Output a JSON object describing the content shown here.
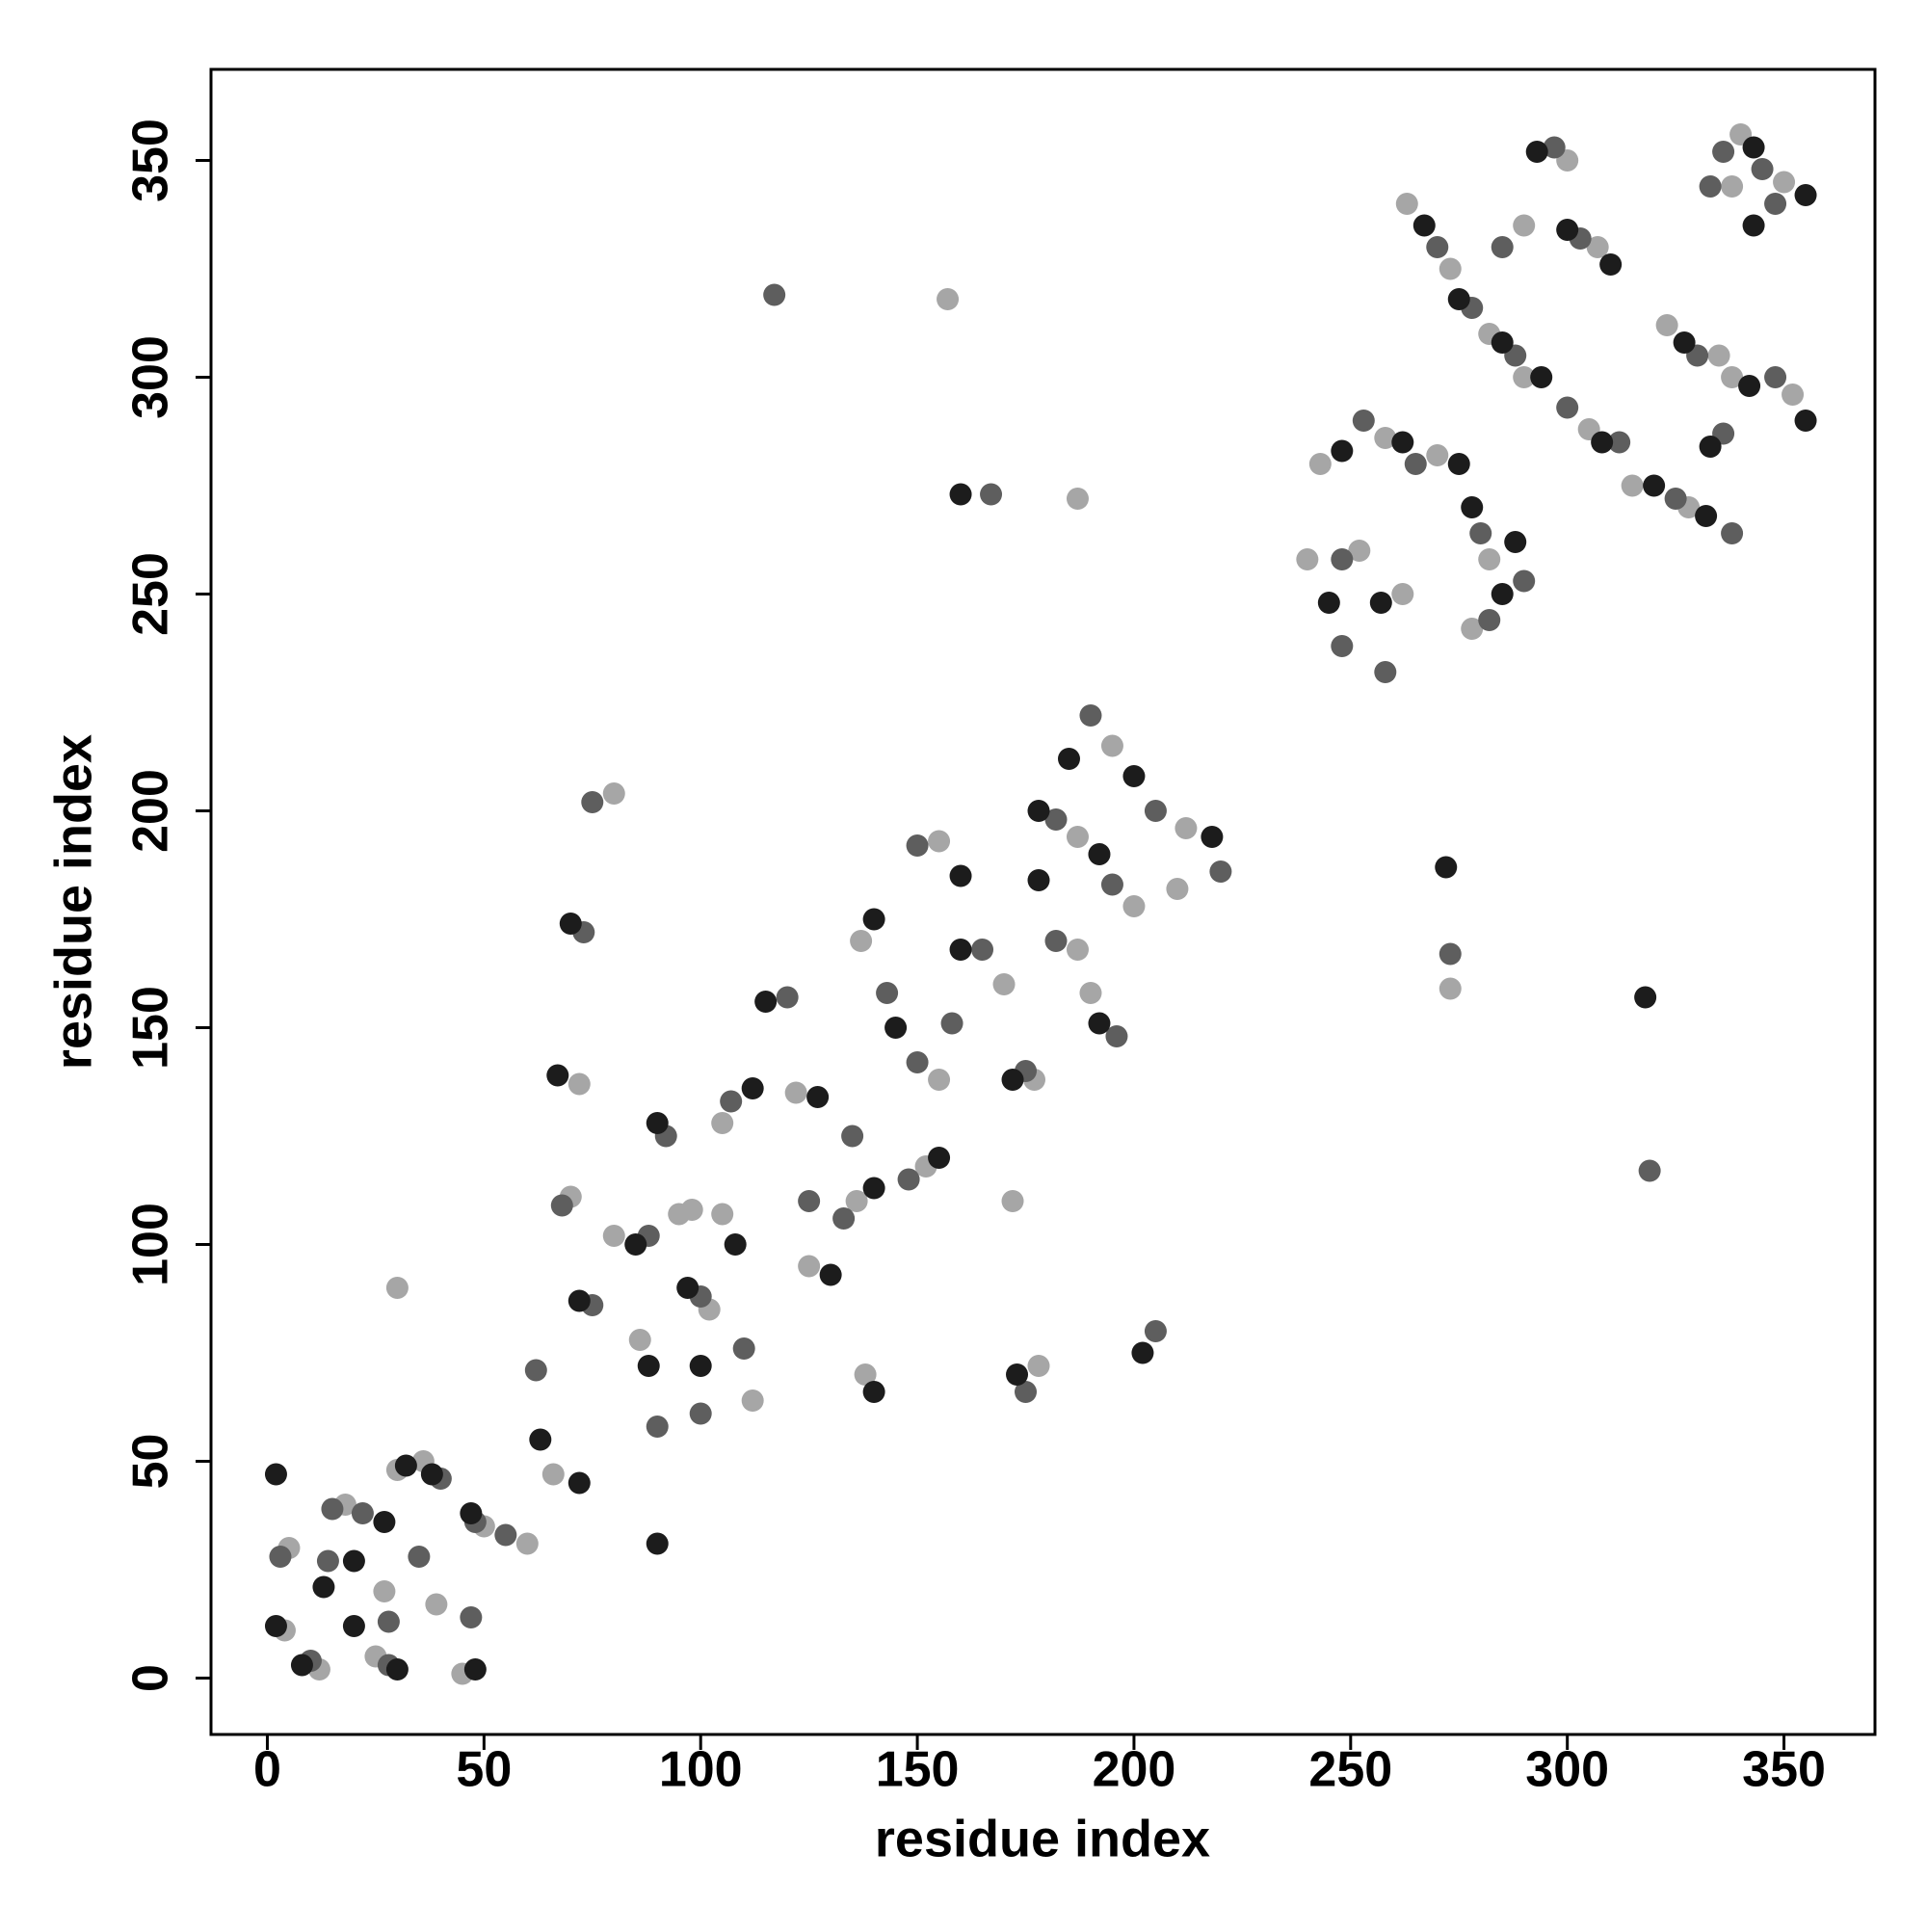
{
  "chart_data": {
    "type": "scatter",
    "xlabel": "residue index",
    "ylabel": "residue index",
    "xlim": [
      -13,
      371
    ],
    "ylim": [
      -13,
      371
    ],
    "xticks": [
      0,
      50,
      100,
      150,
      200,
      250,
      300,
      350
    ],
    "yticks": [
      0,
      50,
      100,
      150,
      200,
      250,
      300,
      350
    ],
    "grid": false,
    "series": [
      {
        "color": "#a6a6a6",
        "x": [
          5,
          12,
          18,
          25,
          30,
          36,
          45,
          50,
          39,
          27,
          4,
          60,
          66,
          70,
          80,
          86,
          95,
          102,
          105,
          112,
          105,
          122,
          125,
          136,
          138,
          152,
          155,
          137,
          155,
          170,
          177,
          187,
          187,
          200,
          190,
          195,
          212,
          210,
          72,
          80,
          98,
          172,
          178,
          30,
          157,
          187,
          273,
          240,
          243,
          258,
          270,
          252,
          262,
          282,
          278,
          263,
          273,
          282,
          290,
          290,
          300,
          307,
          305,
          315,
          328,
          323,
          335,
          338,
          352,
          340,
          338,
          350
        ],
        "y": [
          30,
          2,
          40,
          5,
          48,
          50,
          1,
          35,
          17,
          20,
          11,
          31,
          47,
          111,
          102,
          78,
          107,
          85,
          107,
          64,
          128,
          135,
          95,
          110,
          70,
          118,
          138,
          170,
          193,
          160,
          138,
          168,
          194,
          178,
          158,
          215,
          196,
          182,
          137,
          204,
          108,
          110,
          72,
          90,
          318,
          272,
          159,
          258,
          280,
          286,
          282,
          260,
          250,
          258,
          242,
          340,
          325,
          310,
          300,
          335,
          350,
          330,
          288,
          275,
          270,
          312,
          305,
          300,
          296,
          356,
          344,
          345
        ]
      },
      {
        "color": "#5e5e5e",
        "x": [
          3,
          10,
          15,
          22,
          28,
          35,
          40,
          48,
          47,
          28,
          14,
          55,
          62,
          68,
          75,
          88,
          90,
          100,
          100,
          110,
          107,
          120,
          125,
          133,
          135,
          148,
          150,
          143,
          150,
          165,
          175,
          182,
          182,
          195,
          196,
          190,
          205,
          220,
          73,
          75,
          92,
          158,
          175,
          205,
          117,
          167,
          273,
          319,
          248,
          253,
          265,
          248,
          258,
          280,
          282,
          290,
          270,
          278,
          288,
          285,
          297,
          303,
          300,
          312,
          325,
          338,
          330,
          336,
          348,
          336,
          345,
          348,
          333
        ],
        "y": [
          28,
          4,
          39,
          38,
          3,
          28,
          46,
          36,
          14,
          13,
          27,
          33,
          71,
          109,
          86,
          102,
          58,
          88,
          61,
          76,
          133,
          157,
          110,
          106,
          125,
          115,
          142,
          158,
          192,
          168,
          140,
          170,
          198,
          183,
          148,
          222,
          200,
          186,
          172,
          202,
          125,
          151,
          66,
          80,
          319,
          273,
          167,
          117,
          238,
          290,
          280,
          258,
          232,
          264,
          244,
          253,
          330,
          316,
          305,
          330,
          353,
          332,
          293,
          285,
          272,
          264,
          305,
          287,
          300,
          352,
          348,
          340,
          344
        ]
      },
      {
        "color": "#1c1c1c",
        "x": [
          2,
          8,
          13,
          20,
          27,
          32,
          38,
          47,
          48,
          30,
          20,
          2,
          63,
          72,
          72,
          85,
          88,
          97,
          100,
          108,
          112,
          115,
          127,
          130,
          140,
          140,
          155,
          145,
          140,
          160,
          172,
          178,
          178,
          192,
          192,
          185,
          200,
          218,
          70,
          67,
          90,
          160,
          173,
          202,
          90,
          160,
          272,
          318,
          245,
          248,
          262,
          275,
          257,
          278,
          285,
          288,
          267,
          275,
          285,
          294,
          293,
          300,
          310,
          308,
          320,
          332,
          327,
          333,
          342,
          355,
          343,
          343,
          355
        ],
        "y": [
          12,
          3,
          21,
          12,
          36,
          49,
          47,
          38,
          2,
          2,
          27,
          47,
          55,
          45,
          87,
          100,
          72,
          90,
          72,
          100,
          136,
          156,
          134,
          93,
          113,
          66,
          120,
          150,
          175,
          168,
          138,
          184,
          200,
          190,
          151,
          212,
          208,
          194,
          174,
          139,
          128,
          185,
          70,
          75,
          31,
          273,
          187,
          157,
          248,
          283,
          285,
          280,
          248,
          270,
          250,
          262,
          335,
          318,
          308,
          300,
          352,
          334,
          326,
          285,
          275,
          268,
          308,
          284,
          298,
          290,
          353,
          335,
          342
        ]
      }
    ]
  }
}
